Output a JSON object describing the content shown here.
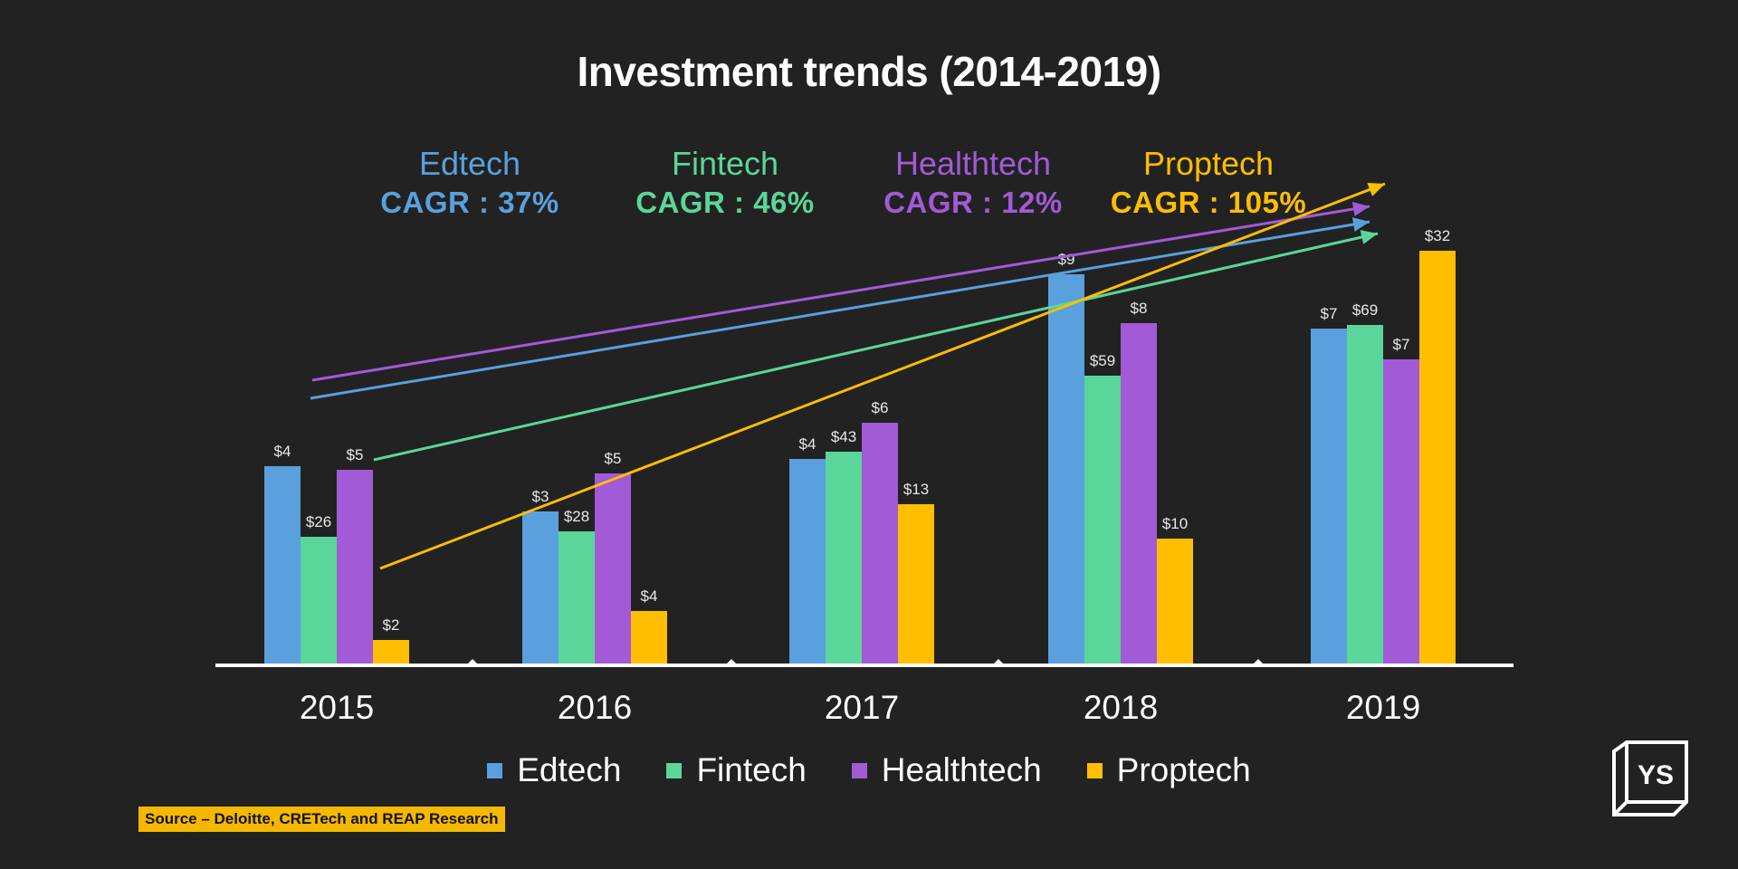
{
  "chart_data": {
    "type": "bar",
    "title": "Investment trends (2014-2019)",
    "categories": [
      "2015",
      "2016",
      "2017",
      "2018",
      "2019"
    ],
    "series": [
      {
        "name": "Edtech",
        "color": "#5aa0dc",
        "values": [
          4,
          3,
          4,
          9,
          7
        ],
        "labels": [
          "$4",
          "$3",
          "$4",
          "$9",
          "$7"
        ],
        "heights": [
          220,
          170,
          228,
          432,
          372
        ]
      },
      {
        "name": "Fintech",
        "color": "#5bd69a",
        "values": [
          26,
          28,
          43,
          59,
          69
        ],
        "labels": [
          "$26",
          "$28",
          "$43",
          "$59",
          "$69"
        ],
        "heights": [
          142,
          148,
          236,
          320,
          376
        ]
      },
      {
        "name": "Healthtech",
        "color": "#a25ad6",
        "values": [
          5,
          5,
          6,
          8,
          7
        ],
        "labels": [
          "$5",
          "$5",
          "$6",
          "$8",
          "$7"
        ],
        "heights": [
          216,
          212,
          268,
          378,
          338
        ]
      },
      {
        "name": "Proptech",
        "color": "#ffbe00",
        "values": [
          2,
          4,
          13,
          10,
          32
        ],
        "labels": [
          "$2",
          "$4",
          "$13",
          "$10",
          "$32"
        ],
        "heights": [
          28,
          60,
          178,
          140,
          458
        ]
      }
    ],
    "trend_lines": [
      {
        "series": "Edtech",
        "cagr_label": "CAGR : 37%"
      },
      {
        "series": "Fintech",
        "cagr_label": "CAGR : 46%"
      },
      {
        "series": "Healthtech",
        "cagr_label": "CAGR : 12%"
      },
      {
        "series": "Proptech",
        "cagr_label": "CAGR : 105%"
      }
    ],
    "legend_position": "bottom",
    "grid": false
  },
  "source_note": "Source – Deloitte, CRETech and REAP Research",
  "logo_text": "YS"
}
